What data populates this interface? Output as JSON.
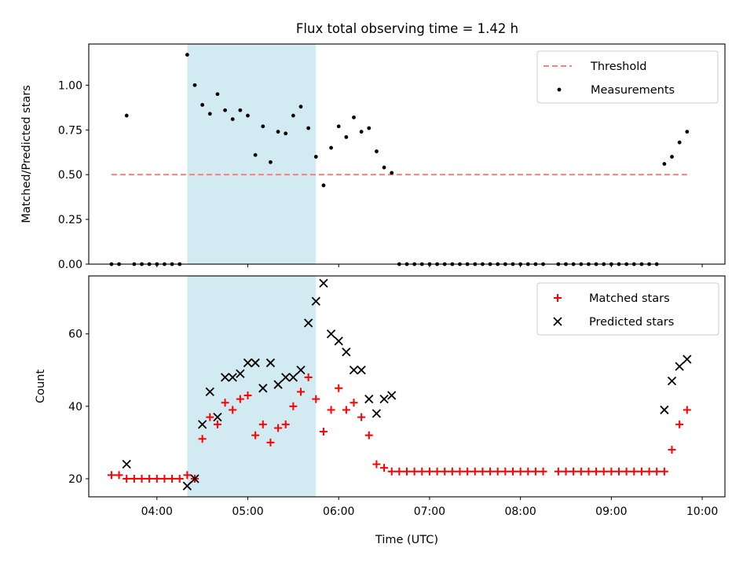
{
  "chart_data": [
    {
      "type": "scatter",
      "title": "Flux total observing time = 1.42 h",
      "xlabel": "",
      "ylabel": "Matched/Predicted stars",
      "xlim": [
        "03:15",
        "10:15"
      ],
      "ylim": [
        0,
        1.23
      ],
      "y_ticks": [
        "0.00",
        "0.25",
        "0.50",
        "0.75",
        "1.00"
      ],
      "y_tick_values": [
        0,
        0.25,
        0.5,
        0.75,
        1.0
      ],
      "x_tick_values": [
        "04:00",
        "05:00",
        "06:00",
        "07:00",
        "08:00",
        "09:00",
        "10:00"
      ],
      "highlight_span": [
        "04:20",
        "05:45"
      ],
      "highlight_color": "#add8e6",
      "legend_position": "top-right",
      "series": [
        {
          "name": "Threshold",
          "style": "dashed-line",
          "color": "#ff7f7f",
          "points": [
            [
              "03:30",
              0.5
            ],
            [
              "09:50",
              0.5
            ]
          ]
        },
        {
          "name": "Measurements",
          "style": "dot",
          "color": "#000000",
          "points": [
            [
              "03:30",
              0.0
            ],
            [
              "03:35",
              0.0
            ],
            [
              "03:40",
              0.83
            ],
            [
              "03:45",
              0.0
            ],
            [
              "03:50",
              0.0
            ],
            [
              "03:55",
              0.0
            ],
            [
              "04:00",
              0.0
            ],
            [
              "04:05",
              0.0
            ],
            [
              "04:10",
              0.0
            ],
            [
              "04:15",
              0.0
            ],
            [
              "04:20",
              1.17
            ],
            [
              "04:25",
              1.0
            ],
            [
              "04:30",
              0.89
            ],
            [
              "04:35",
              0.84
            ],
            [
              "04:40",
              0.95
            ],
            [
              "04:45",
              0.86
            ],
            [
              "04:50",
              0.81
            ],
            [
              "04:55",
              0.86
            ],
            [
              "05:00",
              0.83
            ],
            [
              "05:05",
              0.61
            ],
            [
              "05:10",
              0.77
            ],
            [
              "05:15",
              0.57
            ],
            [
              "05:20",
              0.74
            ],
            [
              "05:25",
              0.73
            ],
            [
              "05:30",
              0.83
            ],
            [
              "05:35",
              0.88
            ],
            [
              "05:40",
              0.76
            ],
            [
              "05:45",
              0.6
            ],
            [
              "05:50",
              0.44
            ],
            [
              "05:55",
              0.65
            ],
            [
              "06:00",
              0.77
            ],
            [
              "06:05",
              0.71
            ],
            [
              "06:10",
              0.82
            ],
            [
              "06:15",
              0.74
            ],
            [
              "06:20",
              0.76
            ],
            [
              "06:25",
              0.63
            ],
            [
              "06:30",
              0.54
            ],
            [
              "06:35",
              0.51
            ],
            [
              "06:40",
              0.0
            ],
            [
              "06:45",
              0.0
            ],
            [
              "06:50",
              0.0
            ],
            [
              "06:55",
              0.0
            ],
            [
              "07:00",
              0.0
            ],
            [
              "07:05",
              0.0
            ],
            [
              "07:10",
              0.0
            ],
            [
              "07:15",
              0.0
            ],
            [
              "07:20",
              0.0
            ],
            [
              "07:25",
              0.0
            ],
            [
              "07:30",
              0.0
            ],
            [
              "07:35",
              0.0
            ],
            [
              "07:40",
              0.0
            ],
            [
              "07:45",
              0.0
            ],
            [
              "07:50",
              0.0
            ],
            [
              "07:55",
              0.0
            ],
            [
              "08:00",
              0.0
            ],
            [
              "08:05",
              0.0
            ],
            [
              "08:10",
              0.0
            ],
            [
              "08:15",
              0.0
            ],
            [
              "08:25",
              0.0
            ],
            [
              "08:30",
              0.0
            ],
            [
              "08:35",
              0.0
            ],
            [
              "08:40",
              0.0
            ],
            [
              "08:45",
              0.0
            ],
            [
              "08:50",
              0.0
            ],
            [
              "08:55",
              0.0
            ],
            [
              "09:00",
              0.0
            ],
            [
              "09:05",
              0.0
            ],
            [
              "09:10",
              0.0
            ],
            [
              "09:15",
              0.0
            ],
            [
              "09:20",
              0.0
            ],
            [
              "09:25",
              0.0
            ],
            [
              "09:30",
              0.0
            ],
            [
              "09:35",
              0.56
            ],
            [
              "09:40",
              0.6
            ],
            [
              "09:45",
              0.68
            ],
            [
              "09:50",
              0.74
            ]
          ]
        }
      ]
    },
    {
      "type": "scatter",
      "title": "",
      "xlabel": "Time (UTC)",
      "ylabel": "Count",
      "xlim": [
        "03:15",
        "10:15"
      ],
      "ylim": [
        15,
        76
      ],
      "y_ticks": [
        "20",
        "40",
        "60"
      ],
      "y_tick_values": [
        20,
        40,
        60
      ],
      "x_ticks": [
        "04:00",
        "05:00",
        "06:00",
        "07:00",
        "08:00",
        "09:00",
        "10:00"
      ],
      "x_tick_values": [
        "04:00",
        "05:00",
        "06:00",
        "07:00",
        "08:00",
        "09:00",
        "10:00"
      ],
      "highlight_span": [
        "04:20",
        "05:45"
      ],
      "highlight_color": "#add8e6",
      "legend_position": "top-right",
      "series": [
        {
          "name": "Matched stars",
          "style": "plus",
          "color": "#ff0000",
          "points": [
            [
              "03:30",
              21
            ],
            [
              "03:35",
              21
            ],
            [
              "03:40",
              20
            ],
            [
              "03:45",
              20
            ],
            [
              "03:50",
              20
            ],
            [
              "03:55",
              20
            ],
            [
              "04:00",
              20
            ],
            [
              "04:05",
              20
            ],
            [
              "04:10",
              20
            ],
            [
              "04:15",
              20
            ],
            [
              "04:20",
              21
            ],
            [
              "04:25",
              20
            ],
            [
              "04:30",
              31
            ],
            [
              "04:35",
              37
            ],
            [
              "04:40",
              35
            ],
            [
              "04:45",
              41
            ],
            [
              "04:50",
              39
            ],
            [
              "04:55",
              42
            ],
            [
              "05:00",
              43
            ],
            [
              "05:05",
              32
            ],
            [
              "05:10",
              35
            ],
            [
              "05:15",
              30
            ],
            [
              "05:20",
              34
            ],
            [
              "05:25",
              35
            ],
            [
              "05:30",
              40
            ],
            [
              "05:35",
              44
            ],
            [
              "05:40",
              48
            ],
            [
              "05:45",
              42
            ],
            [
              "05:50",
              33
            ],
            [
              "05:55",
              39
            ],
            [
              "06:00",
              45
            ],
            [
              "06:05",
              39
            ],
            [
              "06:10",
              41
            ],
            [
              "06:15",
              37
            ],
            [
              "06:20",
              32
            ],
            [
              "06:25",
              24
            ],
            [
              "06:30",
              23
            ],
            [
              "06:35",
              22
            ],
            [
              "06:40",
              22
            ],
            [
              "06:45",
              22
            ],
            [
              "06:50",
              22
            ],
            [
              "06:55",
              22
            ],
            [
              "07:00",
              22
            ],
            [
              "07:05",
              22
            ],
            [
              "07:10",
              22
            ],
            [
              "07:15",
              22
            ],
            [
              "07:20",
              22
            ],
            [
              "07:25",
              22
            ],
            [
              "07:30",
              22
            ],
            [
              "07:35",
              22
            ],
            [
              "07:40",
              22
            ],
            [
              "07:45",
              22
            ],
            [
              "07:50",
              22
            ],
            [
              "07:55",
              22
            ],
            [
              "08:00",
              22
            ],
            [
              "08:05",
              22
            ],
            [
              "08:10",
              22
            ],
            [
              "08:15",
              22
            ],
            [
              "08:25",
              22
            ],
            [
              "08:30",
              22
            ],
            [
              "08:35",
              22
            ],
            [
              "08:40",
              22
            ],
            [
              "08:45",
              22
            ],
            [
              "08:50",
              22
            ],
            [
              "08:55",
              22
            ],
            [
              "09:00",
              22
            ],
            [
              "09:05",
              22
            ],
            [
              "09:10",
              22
            ],
            [
              "09:15",
              22
            ],
            [
              "09:20",
              22
            ],
            [
              "09:25",
              22
            ],
            [
              "09:30",
              22
            ],
            [
              "09:35",
              22
            ],
            [
              "09:40",
              28
            ],
            [
              "09:45",
              35
            ],
            [
              "09:50",
              39
            ]
          ]
        },
        {
          "name": "Predicted stars",
          "style": "x",
          "color": "#000000",
          "points": [
            [
              "03:40",
              24
            ],
            [
              "04:20",
              18
            ],
            [
              "04:25",
              20
            ],
            [
              "04:30",
              35
            ],
            [
              "04:35",
              44
            ],
            [
              "04:40",
              37
            ],
            [
              "04:45",
              48
            ],
            [
              "04:50",
              48
            ],
            [
              "04:55",
              49
            ],
            [
              "05:00",
              52
            ],
            [
              "05:05",
              52
            ],
            [
              "05:10",
              45
            ],
            [
              "05:15",
              52
            ],
            [
              "05:20",
              46
            ],
            [
              "05:25",
              48
            ],
            [
              "05:30",
              48
            ],
            [
              "05:35",
              50
            ],
            [
              "05:40",
              63
            ],
            [
              "05:45",
              69
            ],
            [
              "05:50",
              74
            ],
            [
              "05:55",
              60
            ],
            [
              "06:00",
              58
            ],
            [
              "06:05",
              55
            ],
            [
              "06:10",
              50
            ],
            [
              "06:15",
              50
            ],
            [
              "06:20",
              42
            ],
            [
              "06:25",
              38
            ],
            [
              "06:30",
              42
            ],
            [
              "06:35",
              43
            ],
            [
              "09:35",
              39
            ],
            [
              "09:40",
              47
            ],
            [
              "09:45",
              51
            ],
            [
              "09:50",
              53
            ]
          ]
        }
      ]
    }
  ]
}
